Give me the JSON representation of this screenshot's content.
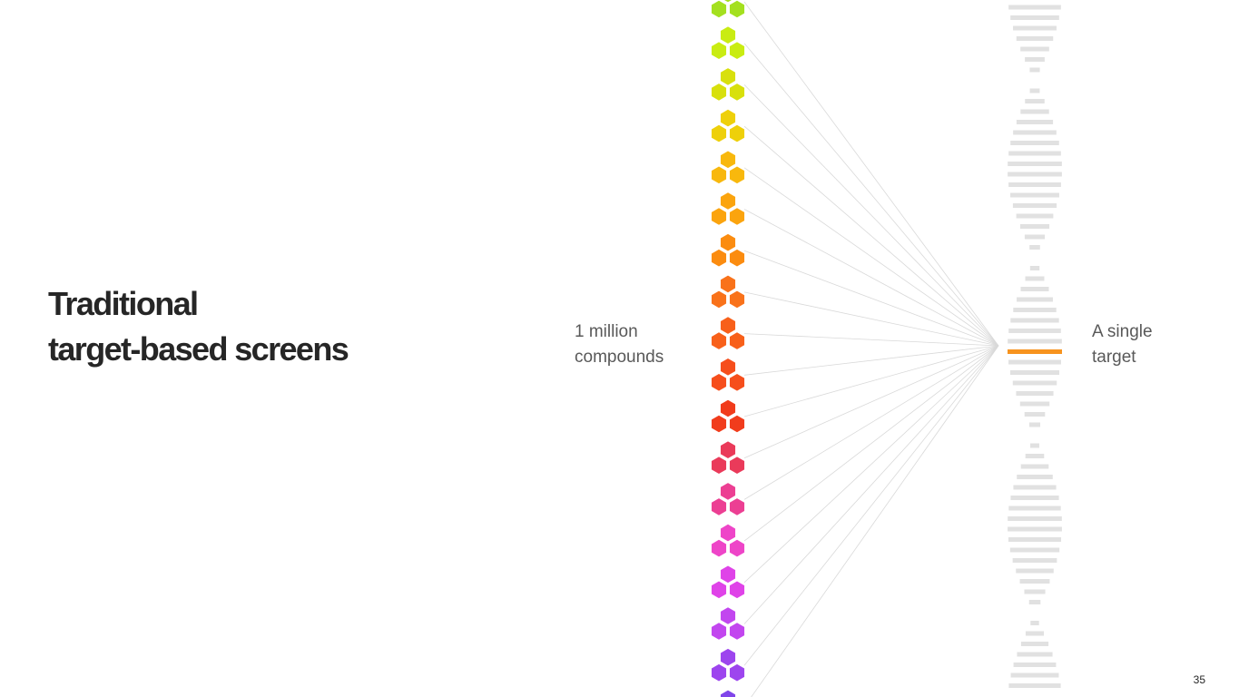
{
  "slide": {
    "title_line1": "Traditional",
    "title_line2": "target-based screens",
    "page_number": "35"
  },
  "compounds": {
    "label_line1": "1 million",
    "label_line2": "compounds",
    "icon": "hexagon-cluster-icon",
    "colors": [
      "#a4e01f",
      "#c9ec12",
      "#d8e00c",
      "#eed00a",
      "#f8b80d",
      "#fba40e",
      "#fb8c10",
      "#f9721a",
      "#f8601a",
      "#f64e1c",
      "#f13c1c",
      "#ea3a5a",
      "#ec3f93",
      "#ee45c8",
      "#df43e8",
      "#c246ef",
      "#9d45ee",
      "#8045ea"
    ]
  },
  "target": {
    "label_line1": "A single",
    "label_line2": "target",
    "icon": "dna-helix-icon",
    "base_color": "#e1e1e1",
    "highlight_color": "#f7931e"
  }
}
